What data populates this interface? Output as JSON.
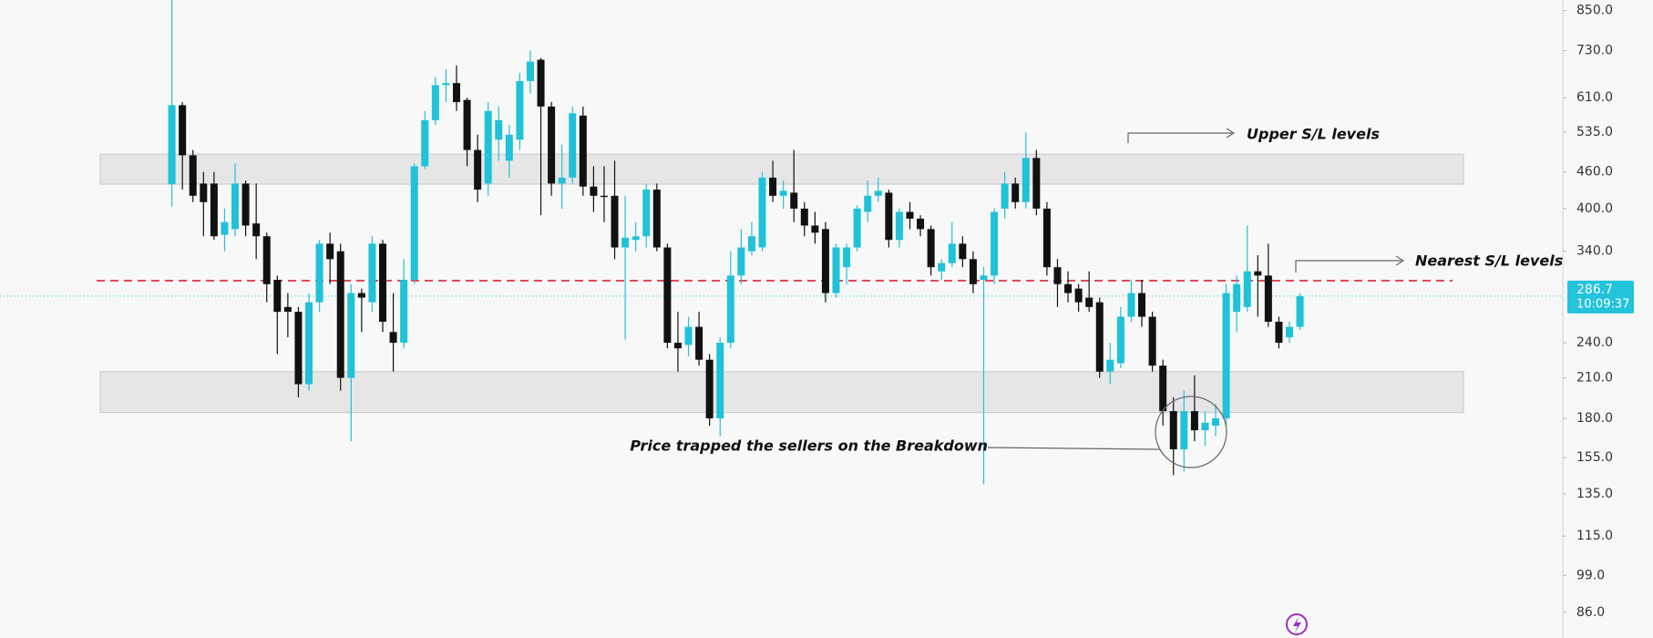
{
  "chart_data": {
    "type": "candlestick",
    "log_scale": true,
    "up_color": "#1fc2d8",
    "down_color": "#111111",
    "ylim": [
      78,
      885
    ],
    "yticks": [
      {
        "value": 850,
        "label": "850.0"
      },
      {
        "value": 730,
        "label": "730.0"
      },
      {
        "value": 610,
        "label": "610.0"
      },
      {
        "value": 535,
        "label": "535.0"
      },
      {
        "value": 460,
        "label": "460.0"
      },
      {
        "value": 400,
        "label": "400.0"
      },
      {
        "value": 340,
        "label": "340.0"
      },
      {
        "value": 240,
        "label": "240.0"
      },
      {
        "value": 210,
        "label": "210.0"
      },
      {
        "value": 180,
        "label": "180.0"
      },
      {
        "value": 155,
        "label": "155.0"
      },
      {
        "value": 135,
        "label": "135.0"
      },
      {
        "value": 115,
        "label": "115.0"
      },
      {
        "value": 99,
        "label": "99.0"
      },
      {
        "value": 86,
        "label": "86.0"
      }
    ],
    "open": [
      439,
      593,
      490,
      440,
      440,
      362,
      370,
      440,
      378,
      360,
      305,
      275,
      270,
      205,
      280,
      350,
      340,
      210,
      290,
      280,
      350,
      250,
      240,
      305,
      470,
      560,
      640,
      645,
      605,
      500,
      440,
      520,
      480,
      520,
      650,
      705,
      590,
      440,
      450,
      570,
      435,
      420,
      420,
      345,
      355,
      360,
      430,
      345,
      240,
      238,
      255,
      225,
      180,
      240,
      310,
      340,
      345,
      450,
      420,
      425,
      400,
      375,
      370,
      290,
      320,
      345,
      395,
      420,
      425,
      355,
      395,
      385,
      370,
      315,
      325,
      350,
      330,
      305,
      310,
      400,
      440,
      410,
      485,
      400,
      320,
      300,
      295,
      285,
      280,
      215,
      222,
      265,
      290,
      265,
      220,
      185,
      160,
      185,
      172,
      175,
      180,
      270,
      275,
      315,
      310,
      260,
      245,
      255
    ],
    "high": [
      885,
      600,
      500,
      460,
      460,
      400,
      475,
      445,
      440,
      365,
      310,
      290,
      275,
      290,
      355,
      365,
      350,
      300,
      295,
      360,
      355,
      290,
      330,
      475,
      580,
      660,
      680,
      690,
      610,
      530,
      600,
      590,
      550,
      670,
      730,
      710,
      600,
      510,
      590,
      590,
      470,
      470,
      480,
      420,
      380,
      440,
      440,
      350,
      270,
      265,
      270,
      230,
      245,
      340,
      370,
      380,
      460,
      480,
      445,
      500,
      410,
      395,
      380,
      350,
      350,
      405,
      445,
      450,
      430,
      400,
      410,
      390,
      375,
      330,
      380,
      360,
      340,
      320,
      400,
      460,
      450,
      535,
      500,
      410,
      330,
      315,
      300,
      315,
      285,
      240,
      275,
      305,
      305,
      270,
      225,
      195,
      200,
      212,
      185,
      190,
      300,
      310,
      375,
      335,
      350,
      265,
      260,
      290
    ],
    "low": [
      403,
      430,
      410,
      360,
      355,
      340,
      360,
      360,
      330,
      280,
      230,
      245,
      195,
      200,
      270,
      300,
      200,
      165,
      250,
      270,
      250,
      215,
      235,
      300,
      465,
      550,
      600,
      580,
      470,
      410,
      420,
      480,
      450,
      500,
      620,
      390,
      420,
      400,
      440,
      420,
      395,
      380,
      330,
      243,
      340,
      345,
      340,
      235,
      215,
      228,
      220,
      175,
      168,
      235,
      300,
      335,
      340,
      410,
      400,
      380,
      360,
      350,
      280,
      285,
      300,
      340,
      380,
      410,
      345,
      345,
      370,
      360,
      310,
      305,
      320,
      320,
      290,
      140,
      300,
      385,
      400,
      400,
      390,
      310,
      275,
      280,
      270,
      270,
      210,
      205,
      218,
      260,
      255,
      215,
      175,
      145,
      147,
      165,
      162,
      168,
      175,
      250,
      270,
      265,
      255,
      235,
      240,
      252
    ],
    "close": [
      593,
      490,
      420,
      410,
      360,
      380,
      440,
      375,
      360,
      300,
      270,
      270,
      205,
      280,
      350,
      330,
      210,
      290,
      285,
      350,
      260,
      240,
      305,
      470,
      560,
      640,
      645,
      600,
      500,
      430,
      580,
      560,
      530,
      650,
      700,
      590,
      440,
      450,
      575,
      435,
      420,
      418,
      345,
      358,
      360,
      430,
      345,
      240,
      235,
      255,
      225,
      180,
      240,
      310,
      345,
      360,
      450,
      420,
      428,
      400,
      375,
      365,
      290,
      345,
      345,
      400,
      420,
      428,
      355,
      395,
      385,
      370,
      320,
      325,
      350,
      330,
      300,
      310,
      395,
      440,
      410,
      485,
      400,
      320,
      300,
      290,
      280,
      275,
      215,
      225,
      265,
      290,
      265,
      220,
      185,
      160,
      185,
      172,
      177,
      180,
      290,
      300,
      315,
      310,
      260,
      240,
      255,
      286.7
    ],
    "zones": [
      {
        "from": 439,
        "to": 492
      },
      {
        "from": 184,
        "to": 215
      }
    ],
    "levels": [
      {
        "value": 304,
        "color": "#e0424b"
      }
    ],
    "last_price": {
      "value": 286.7,
      "time": "10:09:37",
      "color": "#22c3db"
    },
    "annotations": [
      {
        "text": "Upper S/L levels"
      },
      {
        "text": "Nearest S/L levels"
      },
      {
        "text": "Price trapped the sellers on the Breakdown"
      }
    ]
  }
}
